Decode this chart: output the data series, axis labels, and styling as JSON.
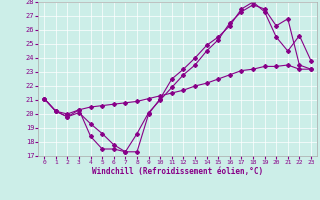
{
  "xlabel": "Windchill (Refroidissement éolien,°C)",
  "xlim": [
    -0.5,
    23.5
  ],
  "ylim": [
    17,
    28
  ],
  "yticks": [
    17,
    18,
    19,
    20,
    21,
    22,
    23,
    24,
    25,
    26,
    27,
    28
  ],
  "xticks": [
    0,
    1,
    2,
    3,
    4,
    5,
    6,
    7,
    8,
    9,
    10,
    11,
    12,
    13,
    14,
    15,
    16,
    17,
    18,
    19,
    20,
    21,
    22,
    23
  ],
  "bg_color": "#cceee8",
  "line_color": "#880088",
  "line1_x": [
    0,
    1,
    2,
    3,
    4,
    5,
    6,
    7,
    8,
    9,
    10,
    11,
    12,
    13,
    14,
    15,
    16,
    17,
    18,
    19,
    20,
    21,
    22,
    23
  ],
  "line1_y": [
    21.1,
    20.2,
    19.8,
    20.3,
    18.4,
    17.5,
    17.5,
    17.3,
    18.6,
    20.1,
    21.0,
    21.9,
    22.8,
    23.5,
    24.5,
    25.3,
    26.5,
    27.3,
    27.8,
    27.5,
    26.3,
    26.8,
    23.5,
    23.2
  ],
  "line2_x": [
    0,
    1,
    2,
    3,
    4,
    5,
    6,
    7,
    8,
    9,
    10,
    11,
    12,
    13,
    14,
    15,
    16,
    17,
    18,
    19,
    20,
    21,
    22,
    23
  ],
  "line2_y": [
    21.1,
    20.2,
    19.8,
    20.1,
    19.3,
    18.6,
    17.8,
    17.3,
    17.3,
    20.0,
    21.1,
    22.5,
    23.2,
    24.0,
    24.9,
    25.5,
    26.3,
    27.5,
    28.0,
    27.3,
    25.5,
    24.5,
    25.6,
    23.8
  ],
  "line3_x": [
    0,
    1,
    2,
    3,
    4,
    5,
    6,
    7,
    8,
    9,
    10,
    11,
    12,
    13,
    14,
    15,
    16,
    17,
    18,
    19,
    20,
    21,
    22,
    23
  ],
  "line3_y": [
    21.1,
    20.2,
    20.0,
    20.3,
    20.5,
    20.6,
    20.7,
    20.8,
    20.9,
    21.1,
    21.3,
    21.5,
    21.7,
    22.0,
    22.2,
    22.5,
    22.8,
    23.1,
    23.2,
    23.4,
    23.4,
    23.5,
    23.2,
    23.2
  ]
}
